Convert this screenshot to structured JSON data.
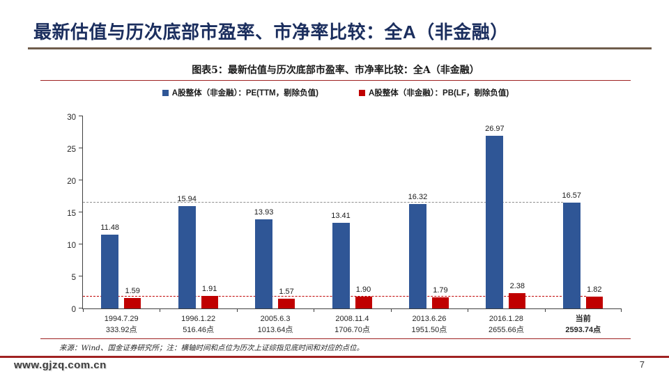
{
  "page": {
    "title": "最新估值与历次底部市盈率、市净率比较：全A（非金融）",
    "source_note": "来源：Wind、国金证券研究所；注：横轴时间和点位为历次上证综指见底时间和对应的点位。",
    "watermark": "www.gjzq.com.cn",
    "page_number": "7"
  },
  "figure": {
    "title": "图表5：最新估值与历次底部市盈率、市净率比较：全A（非金融）"
  },
  "legend": [
    {
      "label": "A股整体（非金融）：PE(TTM，剔除负值)",
      "color": "#2F5696"
    },
    {
      "label": "A股整体（非金融）：PB(LF，剔除负值)",
      "color": "#C00000"
    }
  ],
  "chart_data": {
    "type": "bar",
    "title": "图表5：最新估值与历次底部市盈率、市净率比较：全A（非金融）",
    "categories": [
      {
        "line1": "1994.7.29",
        "line2": "333.92点",
        "bold": false
      },
      {
        "line1": "1996.1.22",
        "line2": "516.46点",
        "bold": false
      },
      {
        "line1": "2005.6.3",
        "line2": "1013.64点",
        "bold": false
      },
      {
        "line1": "2008.11.4",
        "line2": "1706.70点",
        "bold": false
      },
      {
        "line1": "2013.6.26",
        "line2": "1951.50点",
        "bold": false
      },
      {
        "line1": "2016.1.28",
        "line2": "2655.66点",
        "bold": false
      },
      {
        "line1": "当前",
        "line2": "2593.74点",
        "bold": true
      }
    ],
    "series": [
      {
        "name": "A股整体（非金融）：PE(TTM，剔除负值)",
        "color": "#2F5696",
        "values": [
          11.48,
          15.94,
          13.93,
          13.41,
          16.32,
          26.97,
          16.57
        ],
        "labels": [
          "11.48",
          "15.94",
          "13.93",
          "13.41",
          "16.32",
          "26.97",
          "16.57"
        ]
      },
      {
        "name": "A股整体（非金融）：PB(LF，剔除负值)",
        "color": "#C00000",
        "values": [
          1.59,
          1.91,
          1.57,
          1.9,
          1.79,
          2.38,
          1.82
        ],
        "labels": [
          "1.59",
          "1.91",
          "1.57",
          "1.90",
          "1.79",
          "2.38",
          "1.82"
        ]
      }
    ],
    "yticks": [
      0,
      5,
      10,
      15,
      20,
      25,
      30
    ],
    "ylim": [
      0,
      30
    ],
    "xlabel": "",
    "ylabel": "",
    "grid": false,
    "legend_position": "top",
    "reference_lines": [
      {
        "series": 0,
        "value": 16.57,
        "color": "#8C8C8C",
        "style": "dashed"
      },
      {
        "series": 1,
        "value": 1.82,
        "color": "#C00000",
        "style": "dashed"
      }
    ]
  }
}
